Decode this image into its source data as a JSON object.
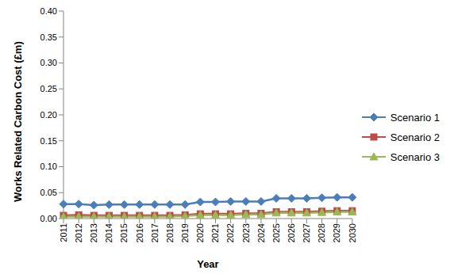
{
  "chart_data": {
    "type": "line",
    "x_label": "Year",
    "y_label": "Works Related Carbon Cost (£m)",
    "categories": [
      "2011",
      "2012",
      "2013",
      "2014",
      "2015",
      "2016",
      "2017",
      "2018",
      "2019",
      "2020",
      "2021",
      "2022",
      "2023",
      "2024",
      "2025",
      "2026",
      "2027",
      "2028",
      "2029",
      "2030"
    ],
    "series": [
      {
        "name": "Scenario 1",
        "color": "#4a7ebb",
        "marker": "diamond",
        "values": [
          0.028,
          0.028,
          0.026,
          0.027,
          0.027,
          0.027,
          0.027,
          0.027,
          0.027,
          0.032,
          0.032,
          0.033,
          0.033,
          0.033,
          0.039,
          0.039,
          0.039,
          0.04,
          0.041,
          0.041
        ]
      },
      {
        "name": "Scenario 2",
        "color": "#be4b48",
        "marker": "square",
        "values": [
          0.006,
          0.007,
          0.006,
          0.006,
          0.006,
          0.006,
          0.006,
          0.006,
          0.007,
          0.009,
          0.009,
          0.009,
          0.01,
          0.01,
          0.013,
          0.013,
          0.013,
          0.014,
          0.015,
          0.015
        ]
      },
      {
        "name": "Scenario 3",
        "color": "#98b954",
        "marker": "triangle",
        "values": [
          0.004,
          0.004,
          0.004,
          0.004,
          0.004,
          0.004,
          0.004,
          0.004,
          0.005,
          0.007,
          0.007,
          0.007,
          0.008,
          0.008,
          0.011,
          0.011,
          0.011,
          0.012,
          0.013,
          0.013
        ]
      }
    ],
    "ylim": [
      0,
      0.4
    ],
    "yticks": [
      {
        "value": 0,
        "label": "0.00"
      },
      {
        "value": 0.05,
        "label": "0.05"
      },
      {
        "value": 0.1,
        "label": "0.10"
      },
      {
        "value": 0.15,
        "label": "0.15"
      },
      {
        "value": 0.2,
        "label": "0.20"
      },
      {
        "value": 0.25,
        "label": "0.25"
      },
      {
        "value": 0.3,
        "label": "0.30"
      },
      {
        "value": 0.35,
        "label": "0.35"
      },
      {
        "value": 0.4,
        "label": "0.40"
      }
    ],
    "grid": false,
    "legend": "right"
  }
}
